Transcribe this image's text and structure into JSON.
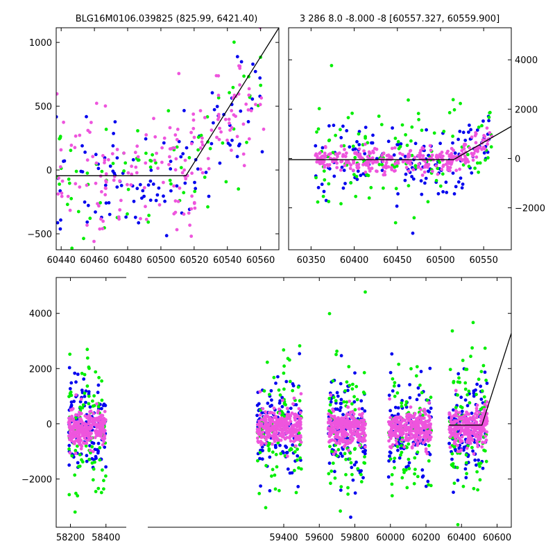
{
  "chart_data": [
    {
      "type": "scatter",
      "title": "BLG16M0106.039825 (825.99, 6421.40)",
      "xlabel": "",
      "ylabel": "",
      "xlim": [
        60437,
        60571
      ],
      "ylim": [
        -625,
        1115
      ],
      "xticks": [
        60440,
        60460,
        60480,
        60500,
        60520,
        60540,
        60560
      ],
      "yticks": [
        -500,
        0,
        500,
        1000
      ],
      "ytick_side": "left",
      "series": [
        {
          "color": "#0000ee",
          "seed": 11,
          "x_range": [
            60437,
            60562
          ],
          "center": -40,
          "spread": 230,
          "count": 110
        },
        {
          "color": "#00ee00",
          "seed": 12,
          "x_range": [
            60437,
            60562
          ],
          "center": -40,
          "spread": 260,
          "count": 80
        },
        {
          "color": "#ee55dd",
          "seed": 13,
          "x_range": [
            60437,
            60562
          ],
          "center": -40,
          "spread": 240,
          "count": 180
        }
      ],
      "fit_line": [
        [
          60437,
          -45
        ],
        [
          60515,
          -45
        ],
        [
          60571,
          1115
        ]
      ],
      "rise_start": 60515,
      "rise_slope": 20.7
    },
    {
      "type": "scatter",
      "title": "3 286 8.0 -8.000 -8 [60557.327, 60559.900]",
      "xlabel": "",
      "ylabel": "",
      "xlim": [
        60324,
        60582
      ],
      "ylim": [
        -3700,
        5300
      ],
      "xticks": [
        60350,
        60400,
        60450,
        60500,
        60550
      ],
      "yticks": [
        -2000,
        0,
        2000,
        4000
      ],
      "ytick_side": "right",
      "series": [
        {
          "color": "#0000ee",
          "seed": 21,
          "x_range": [
            60355,
            60560
          ],
          "center": -60,
          "spread": 700,
          "count": 150
        },
        {
          "color": "#00ee00",
          "seed": 22,
          "x_range": [
            60355,
            60560
          ],
          "center": -80,
          "spread": 900,
          "count": 120
        },
        {
          "color": "#ee55dd",
          "seed": 23,
          "x_range": [
            60355,
            60560
          ],
          "center": -40,
          "spread": 250,
          "count": 320
        }
      ],
      "fit_line": [
        [
          60324,
          -50
        ],
        [
          60515,
          -50
        ],
        [
          60582,
          1300
        ]
      ],
      "rise_start": 60515,
      "rise_slope": 20.7
    },
    {
      "type": "scatter",
      "title": "",
      "xlabel": "",
      "ylabel": "",
      "xlim": [
        58120,
        60680
      ],
      "ylim": [
        -3750,
        5300
      ],
      "xticks": [
        58200,
        58400,
        59400,
        59600,
        59800,
        60000,
        60200,
        60400,
        60600
      ],
      "yticks": [
        -2000,
        0,
        2000,
        4000
      ],
      "ytick_side": "left",
      "axis_break": [
        58460,
        59250
      ],
      "clusters": [
        [
          58190,
          58400
        ],
        [
          59250,
          59500
        ],
        [
          59650,
          59860
        ],
        [
          59990,
          60230
        ],
        [
          60330,
          60545
        ]
      ],
      "series": [
        {
          "color": "#0000ee",
          "seed": 31,
          "center": -100,
          "spread": 900,
          "count_per_cluster": 120
        },
        {
          "color": "#00ee00",
          "seed": 32,
          "center": -300,
          "spread": 1200,
          "count_per_cluster": 90
        },
        {
          "color": "#ee55dd",
          "seed": 33,
          "center": -150,
          "spread": 300,
          "count_per_cluster": 280
        }
      ],
      "fit_line": [
        [
          60330,
          -50
        ],
        [
          60515,
          -50
        ],
        [
          60680,
          3280
        ]
      ],
      "rise_start": 60515,
      "rise_slope": 20.7
    }
  ]
}
